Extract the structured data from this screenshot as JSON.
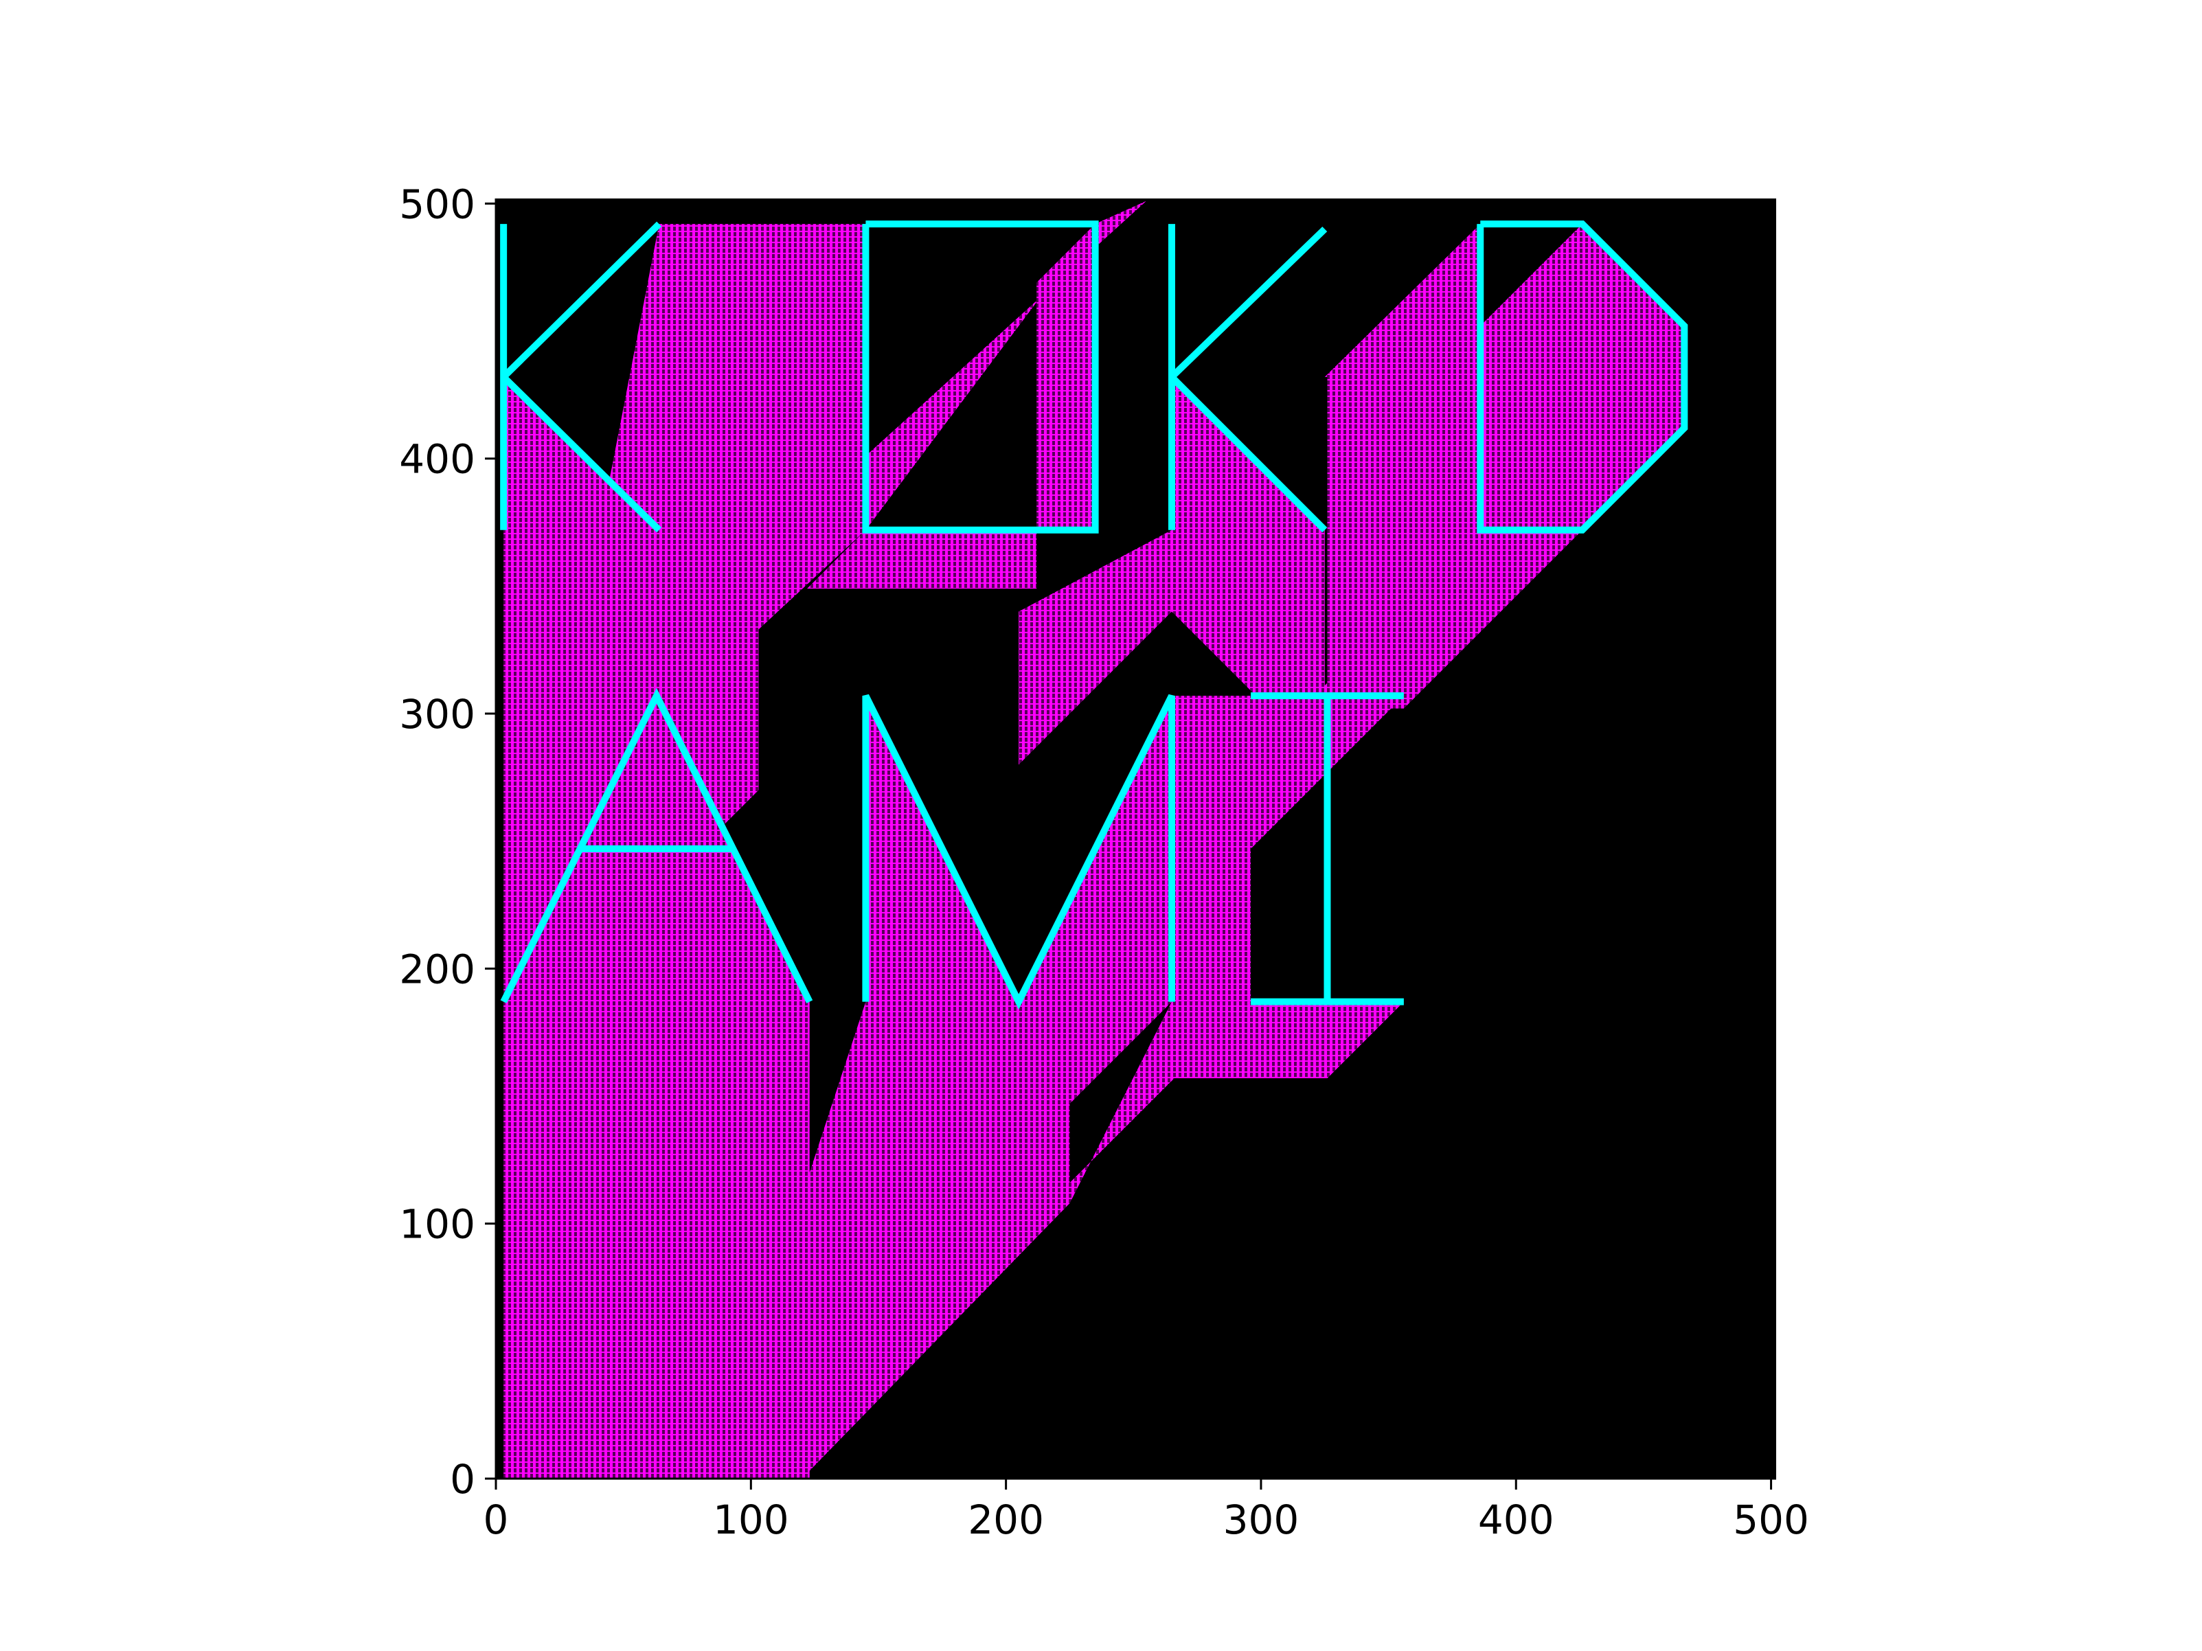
{
  "chart_data": {
    "type": "line",
    "title": "",
    "xlabel": "",
    "ylabel": "",
    "xlim": [
      0,
      502
    ],
    "ylim": [
      0,
      502
    ],
    "x_ticks": [
      0,
      100,
      200,
      300,
      400,
      500
    ],
    "y_ticks": [
      0,
      100,
      200,
      300,
      400,
      500
    ],
    "x_tick_labels": [
      "0",
      "100",
      "200",
      "300",
      "400",
      "500"
    ],
    "y_tick_labels": [
      "0",
      "100",
      "200",
      "300",
      "400",
      "500"
    ],
    "grid": false,
    "background": "#000000",
    "colors": {
      "letters": "#00ffff",
      "trails": "#ff00ff",
      "plot_bg": "#000000"
    },
    "trail_direction": {
      "dx": -1,
      "dy": -1
    },
    "series": [
      {
        "label": "K",
        "color": "#00ffff",
        "segments": [
          [
            [
              3,
              492
            ],
            [
              3,
              372
            ]
          ],
          [
            [
              3,
              432
            ],
            [
              64,
              492
            ]
          ],
          [
            [
              3,
              432
            ],
            [
              64,
              372
            ]
          ]
        ]
      },
      {
        "label": "O",
        "color": "#00ffff",
        "segments": [
          [
            [
              145,
              492
            ],
            [
              235,
              492
            ],
            [
              235,
              372
            ],
            [
              145,
              372
            ],
            [
              145,
              492
            ]
          ]
        ]
      },
      {
        "label": "K",
        "color": "#00ffff",
        "segments": [
          [
            [
              265,
              492
            ],
            [
              265,
              372
            ]
          ],
          [
            [
              265,
              432
            ],
            [
              325,
              490
            ]
          ],
          [
            [
              265,
              432
            ],
            [
              325,
              372
            ]
          ]
        ]
      },
      {
        "label": "D",
        "color": "#00ffff",
        "segments": [
          [
            [
              386,
              492
            ],
            [
              426,
              492
            ],
            [
              466,
              452
            ],
            [
              466,
              412
            ],
            [
              426,
              372
            ],
            [
              386,
              372
            ],
            [
              386,
              492
            ]
          ]
        ]
      },
      {
        "label": "A",
        "color": "#00ffff",
        "segments": [
          [
            [
              3,
              187
            ],
            [
              63,
              307
            ],
            [
              123,
              187
            ]
          ],
          [
            [
              33,
              247
            ],
            [
              93,
              247
            ]
          ]
        ]
      },
      {
        "label": "M",
        "color": "#00ffff",
        "segments": [
          [
            [
              145,
              187
            ],
            [
              145,
              307
            ],
            [
              205,
              187
            ],
            [
              265,
              307
            ],
            [
              265,
              187
            ]
          ]
        ]
      },
      {
        "label": "I",
        "color": "#00ffff",
        "segments": [
          [
            [
              296,
              307
            ],
            [
              356,
              307
            ]
          ],
          [
            [
              326,
              307
            ],
            [
              326,
              187
            ]
          ],
          [
            [
              296,
              187
            ],
            [
              356,
              187
            ]
          ]
        ]
      }
    ],
    "trail_regions": [
      {
        "polygon": [
          [
            3,
            432
          ],
          [
            64,
            372
          ],
          [
            103,
            333
          ],
          [
            103,
            270
          ],
          [
            44,
            328
          ],
          [
            3,
            367
          ]
        ]
      },
      {
        "polygon": [
          [
            3,
            367
          ],
          [
            44,
            328
          ],
          [
            103,
            270
          ],
          [
            3,
            170
          ]
        ]
      },
      {
        "polygon": [
          [
            44,
            389
          ],
          [
            103,
            333
          ],
          [
            145,
            372
          ],
          [
            145,
            492
          ]
        ]
      },
      {
        "polygon": [
          [
            145,
            372
          ],
          [
            235,
            372
          ],
          [
            235,
            492
          ],
          [
            212,
            469
          ],
          [
            212,
            349
          ],
          [
            122,
            349
          ]
        ]
      },
      {
        "polygon": [
          [
            235,
            492
          ],
          [
            255,
            501
          ],
          [
            145,
            401
          ],
          [
            145,
            372
          ]
        ]
      },
      {
        "polygon": [
          [
            265,
            432
          ],
          [
            325,
            372
          ],
          [
            325,
            313
          ],
          [
            265,
            372
          ]
        ]
      },
      {
        "polygon": [
          [
            265,
            372
          ],
          [
            325,
            313
          ],
          [
            325,
            280
          ],
          [
            265,
            340
          ],
          [
            205,
            280
          ],
          [
            205,
            340
          ]
        ]
      },
      {
        "polygon": [
          [
            325,
            432
          ],
          [
            386,
            492
          ],
          [
            386,
            372
          ],
          [
            326,
            312
          ],
          [
            326,
            432
          ]
        ]
      },
      {
        "polygon": [
          [
            386,
            372
          ],
          [
            426,
            372
          ],
          [
            466,
            412
          ],
          [
            466,
            452
          ],
          [
            426,
            492
          ],
          [
            386,
            452
          ]
        ]
      },
      {
        "polygon": [
          [
            386,
            372
          ],
          [
            426,
            372
          ],
          [
            356,
            302
          ],
          [
            316,
            302
          ]
        ]
      },
      {
        "polygon": [
          [
            3,
            187
          ],
          [
            63,
            307
          ],
          [
            123,
            187
          ],
          [
            65,
            129
          ],
          [
            3,
            152
          ]
        ]
      },
      {
        "polygon": [
          [
            3,
            152
          ],
          [
            65,
            129
          ],
          [
            123,
            187
          ],
          [
            123,
            160
          ],
          [
            40,
            77
          ],
          [
            3,
            114
          ]
        ]
      },
      {
        "polygon": [
          [
            3,
            114
          ],
          [
            40,
            77
          ],
          [
            123,
            160
          ],
          [
            123,
            0
          ],
          [
            3,
            0
          ]
        ]
      },
      {
        "polygon": [
          [
            145,
            187
          ],
          [
            145,
            307
          ],
          [
            205,
            187
          ],
          [
            265,
            307
          ],
          [
            265,
            187
          ],
          [
            225,
            147
          ],
          [
            225,
            108
          ],
          [
            120,
            0
          ],
          [
            3,
            0
          ],
          [
            123,
            120
          ]
        ]
      },
      {
        "polygon": [
          [
            265,
            307
          ],
          [
            356,
            307
          ],
          [
            326,
            277
          ],
          [
            296,
            247
          ],
          [
            296,
            187
          ],
          [
            265,
            187
          ]
        ]
      },
      {
        "polygon": [
          [
            296,
            187
          ],
          [
            356,
            187
          ],
          [
            326,
            157
          ],
          [
            266,
            157
          ]
        ]
      },
      {
        "polygon": [
          [
            225,
            108
          ],
          [
            265,
            187
          ],
          [
            296,
            187
          ],
          [
            205,
            96
          ],
          [
            125,
            16
          ]
        ]
      },
      {
        "polygon": [
          [
            64,
            492
          ],
          [
            125,
            492
          ],
          [
            145,
            492
          ],
          [
            145,
            372
          ],
          [
            64,
            372
          ],
          [
            44,
            389
          ]
        ]
      }
    ]
  }
}
